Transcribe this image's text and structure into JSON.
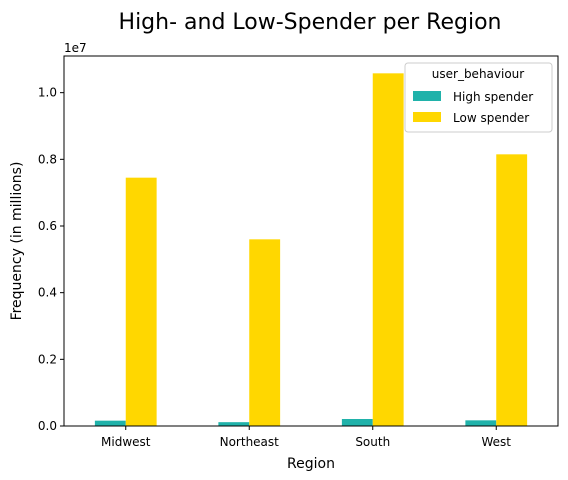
{
  "chart_data": {
    "type": "bar",
    "title": "High- and Low-Spender per Region",
    "xlabel": "Region",
    "ylabel": "Frequency (in millions)",
    "y_scale_label": "1e7",
    "categories": [
      "Midwest",
      "Northeast",
      "South",
      "West"
    ],
    "series": [
      {
        "name": "High spender",
        "values": [
          160000,
          115000,
          210000,
          170000
        ],
        "color": "#20b2aa"
      },
      {
        "name": "Low spender",
        "values": [
          7450000,
          5600000,
          10580000,
          8150000
        ],
        "color": "#ffd700"
      }
    ],
    "yticks": [
      "0.0",
      "0.2",
      "0.4",
      "0.6",
      "0.8",
      "1.0"
    ],
    "ylim": [
      0,
      11100000
    ],
    "legend_title": "user_behaviour",
    "legend_placement": "top-right",
    "grid": false
  }
}
